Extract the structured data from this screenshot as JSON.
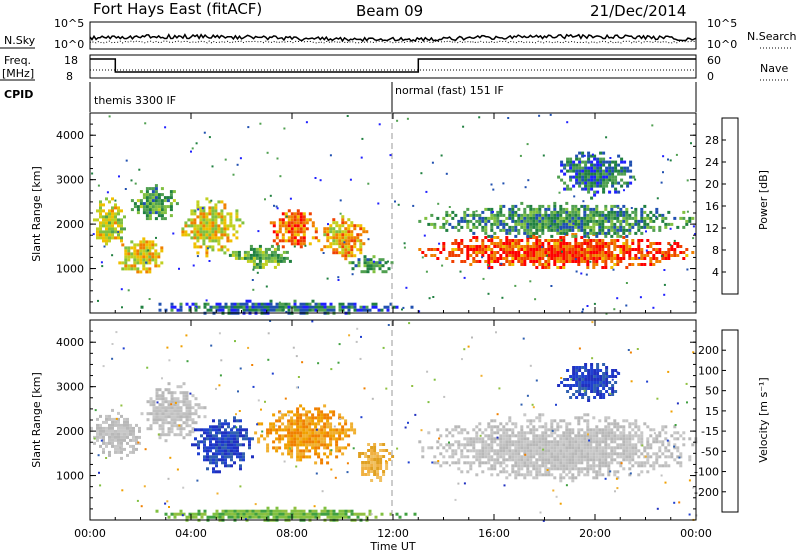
{
  "header": {
    "station": "Fort Hays East (fitACF)",
    "beam": "Beam 09",
    "date": "21/Dec/2014"
  },
  "top_panels": {
    "nsky_label": "N.Sky",
    "nsearch_label": "N.Search",
    "nsky_ticks": [
      "10^5",
      "10^0"
    ],
    "nsearch_ticks": [
      "10^5",
      "10^0"
    ],
    "freq_label_1": "Freq.",
    "freq_label_2": "[MHz]",
    "freq_ticks": [
      "18",
      "8"
    ],
    "nave_label": "Nave",
    "nave_ticks": [
      "60",
      "0"
    ],
    "cpid_label": "CPID",
    "cpid_segments": [
      {
        "label": "themis 3300 IF",
        "start_hour": 0
      },
      {
        "label": "normal (fast) 151 IF",
        "start_hour": 12
      }
    ],
    "frequency_steps": [
      {
        "from_hour": 0,
        "to_hour": 1.0,
        "level": "high"
      },
      {
        "from_hour": 1.0,
        "to_hour": 13.0,
        "level": "low"
      },
      {
        "from_hour": 13.0,
        "to_hour": 24,
        "level": "high"
      }
    ]
  },
  "power_colorbar": {
    "label": "Power [dB]",
    "ticks": [
      "28",
      "24",
      "20",
      "16",
      "12",
      "8",
      "4"
    ],
    "colors": [
      "#2020ff",
      "#2050b0",
      "#208040",
      "#50a050",
      "#80c040",
      "#c0d020",
      "#f0c000",
      "#f08000",
      "#f04000",
      "#ff0000"
    ]
  },
  "velocity_colorbar": {
    "label": "Velocity [m s⁻¹]",
    "ticks": [
      "200",
      "100",
      "50",
      "15",
      "-15",
      "-50",
      "-100",
      "-200"
    ],
    "colors": [
      "#2030c0",
      "#3060b0",
      "#40a040",
      "#90c040",
      "#c0c0c0",
      "#c0c0c0",
      "#f0a000",
      "#f07000",
      "#f03000",
      "#ff0000"
    ]
  },
  "chart_data": [
    {
      "type": "heatmap",
      "name": "power",
      "ylabel": "Slant Range [km]",
      "xlabel": "Time UT",
      "y_ticks": [
        "4000",
        "3000",
        "2000",
        "1000"
      ],
      "ylim": [
        0,
        4500
      ],
      "xlim_hours": [
        0,
        24
      ],
      "x_tick_labels": [
        "00:00",
        "04:00",
        "08:00",
        "12:00",
        "16:00",
        "20:00",
        "00:00"
      ],
      "colorbar_range_db": [
        0,
        30
      ],
      "blobs": [
        {
          "t0": 0.0,
          "t1": 1.5,
          "r0": 1500,
          "r1": 2600,
          "level": 0.55
        },
        {
          "t0": 1.0,
          "t1": 3.0,
          "r0": 900,
          "r1": 1700,
          "level": 0.6
        },
        {
          "t0": 1.5,
          "t1": 3.5,
          "r0": 2100,
          "r1": 2900,
          "level": 0.35
        },
        {
          "t0": 3.5,
          "t1": 6.0,
          "r0": 1300,
          "r1": 2600,
          "level": 0.6
        },
        {
          "t0": 5.5,
          "t1": 8.0,
          "r0": 1000,
          "r1": 1600,
          "level": 0.4
        },
        {
          "t0": 7.0,
          "t1": 9.0,
          "r0": 1500,
          "r1": 2400,
          "level": 0.8
        },
        {
          "t0": 9.0,
          "t1": 11.0,
          "r0": 1200,
          "r1": 2200,
          "level": 0.65
        },
        {
          "t0": 10.0,
          "t1": 12.0,
          "r0": 900,
          "r1": 1300,
          "level": 0.3
        },
        {
          "t0": 13.0,
          "t1": 24.0,
          "r0": 1000,
          "r1": 1800,
          "level": 0.85
        },
        {
          "t0": 13.0,
          "t1": 24.0,
          "r0": 1700,
          "r1": 2500,
          "level": 0.3
        },
        {
          "t0": 18.5,
          "t1": 21.5,
          "r0": 2600,
          "r1": 3700,
          "level": 0.2
        },
        {
          "t0": 2.0,
          "t1": 13.0,
          "r0": 0,
          "r1": 300,
          "level": 0.2
        }
      ]
    },
    {
      "type": "heatmap",
      "name": "velocity",
      "ylabel": "Slant Range [km]",
      "xlabel": "Time UT",
      "y_ticks": [
        "4000",
        "3000",
        "2000",
        "1000"
      ],
      "ylim": [
        0,
        4500
      ],
      "xlim_hours": [
        0,
        24
      ],
      "x_tick_labels": [
        "00:00",
        "04:00",
        "08:00",
        "12:00",
        "16:00",
        "20:00",
        "00:00"
      ],
      "colorbar_range_ms": [
        -200,
        200
      ],
      "blobs": [
        {
          "t0": 0.0,
          "t1": 2.0,
          "r0": 1400,
          "r1": 2500,
          "vel": "gray"
        },
        {
          "t0": 2.0,
          "t1": 4.5,
          "r0": 1800,
          "r1": 3100,
          "vel": "gray"
        },
        {
          "t0": 4.0,
          "t1": 6.5,
          "r0": 1100,
          "r1": 2400,
          "vel": "blue"
        },
        {
          "t0": 6.5,
          "t1": 10.5,
          "r0": 1300,
          "r1": 2600,
          "vel": "orange"
        },
        {
          "t0": 10.5,
          "t1": 12.0,
          "r0": 900,
          "r1": 1800,
          "vel": "lightorange"
        },
        {
          "t0": 13.0,
          "t1": 24.0,
          "r0": 900,
          "r1": 2400,
          "vel": "gray"
        },
        {
          "t0": 18.5,
          "t1": 21.0,
          "r0": 2700,
          "r1": 3600,
          "vel": "blue"
        },
        {
          "t0": 2.0,
          "t1": 13.0,
          "r0": 0,
          "r1": 300,
          "vel": "green"
        }
      ]
    }
  ]
}
